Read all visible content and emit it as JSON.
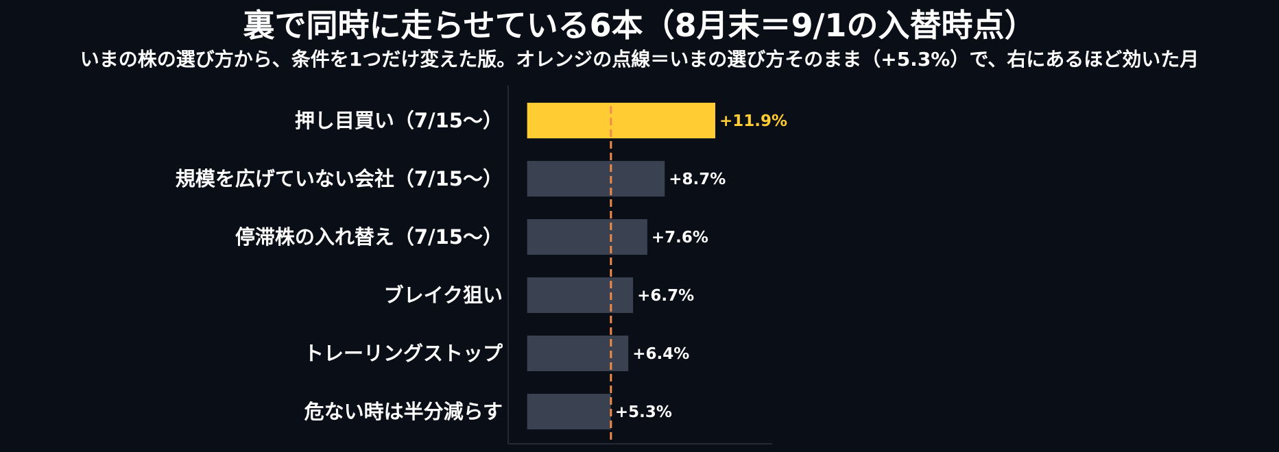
{
  "chart_data": {
    "type": "bar",
    "orientation": "horizontal",
    "title": "裏で同時に走らせている6本（8月末＝9/1の入替時点）",
    "subtitle": "いまの株の選び方から、条件を1つだけ変えた版。オレンジの点線＝いまの選び方そのまま（+5.3%）で、右にあるほど効いた月",
    "categories": [
      "押し目買い（7/15〜）",
      "規模を広げていない会社（7/15〜）",
      "停滞株の入れ替え（7/15〜）",
      "ブレイク狙い",
      "トレーリングストップ",
      "危ない時は半分減らす"
    ],
    "values": [
      11.9,
      8.7,
      7.6,
      6.7,
      6.4,
      5.3
    ],
    "value_labels": [
      "+11.9%",
      "+8.7%",
      "+7.6%",
      "+6.7%",
      "+6.4%",
      "+5.3%"
    ],
    "highlight_index": 0,
    "reference_line": 5.3,
    "xlim": [
      -1.2,
      15.5
    ],
    "grid": false,
    "colors": {
      "highlight": "#ffcc33",
      "bar": "#3a4151",
      "reference_line": "#f08a4b",
      "highlight_label": "#ffcc33",
      "label": "#ffffff",
      "axis": "#2c3240",
      "background": "#0a0e16"
    }
  }
}
